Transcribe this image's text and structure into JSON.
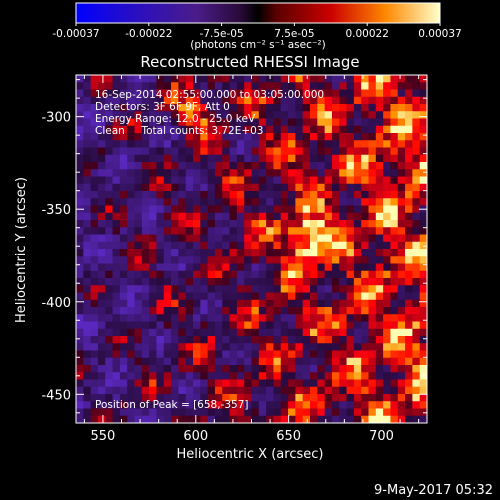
{
  "colorbar": {
    "tick_labels": [
      "-0.00037",
      "-0.00022",
      "-7.5e-05",
      "7.5e-05",
      "0.00022",
      "0.00037"
    ],
    "units_label": "(photons cm⁻² s⁻¹ asec⁻²)"
  },
  "image": {
    "title": "Reconstructed RHESSI Image",
    "info_lines": [
      "16-Sep-2014 02:55:00.000 to 03:05:00.000",
      "Detectors: 3F 6F 9F, Att 0",
      "Energy Range: 12.0 - 25.0 keV",
      "Clean     Total counts: 3.72E+03"
    ],
    "peak_label": "Position of Peak = [658,-357]"
  },
  "axes": {
    "xlabel": "Heliocentric X (arcsec)",
    "ylabel": "Heliocentric Y (arcsec)",
    "x_ticks": [
      "550",
      "600",
      "650",
      "700"
    ],
    "y_ticks": [
      "-300",
      "-350",
      "-400",
      "-450"
    ]
  },
  "footer": {
    "timestamp": "9-May-2017 05:32"
  },
  "colors": {
    "background": "#000000",
    "foreground": "#ffffff"
  }
}
